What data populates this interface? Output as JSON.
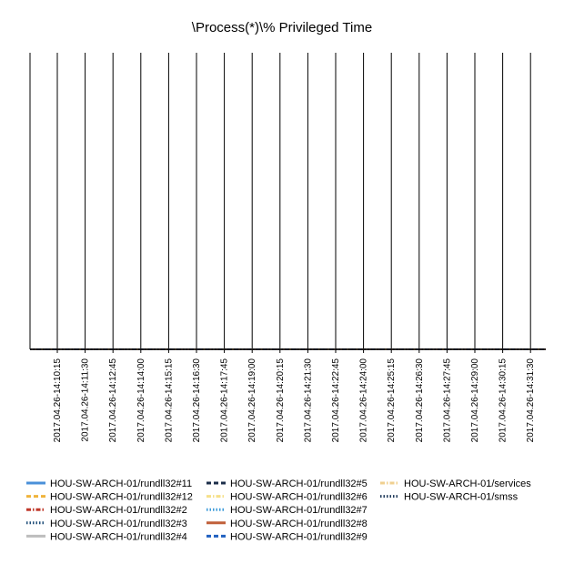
{
  "chart_data": {
    "type": "line",
    "title": "\\Process(*)\\% Privileged Time",
    "xlabel": "",
    "ylabel": "",
    "grid": "vertical",
    "legend_position": "bottom",
    "categories": [
      "2017.04.26-14:10:15",
      "2017.04.26-14:11:30",
      "2017.04.26-14:12:45",
      "2017.04.26-14:14:00",
      "2017.04.26-14:15:15",
      "2017.04.26-14:16:30",
      "2017.04.26-14:17:45",
      "2017.04.26-14:19:00",
      "2017.04.26-14:20:15",
      "2017.04.26-14:21:30",
      "2017.04.26-14:22:45",
      "2017.04.26-14:24:00",
      "2017.04.26-14:25:15",
      "2017.04.26-14:26:30",
      "2017.04.26-14:27:45",
      "2017.04.26-14:29:00",
      "2017.04.26-14:30:15",
      "2017.04.26-14:31:30"
    ],
    "series": [
      {
        "name": "HOU-SW-ARCH-01/rundll32#11",
        "color": "#4a90d9",
        "dash": "solid",
        "values": [
          0,
          0,
          0,
          0,
          0,
          0,
          0,
          0,
          0,
          0,
          0,
          0,
          0,
          0,
          0,
          0,
          0,
          0
        ]
      },
      {
        "name": "HOU-SW-ARCH-01/rundll32#12",
        "color": "#f0b43c",
        "dash": "dash",
        "values": [
          0,
          0,
          0,
          0,
          0,
          0,
          0,
          0,
          0,
          0,
          0,
          0,
          0,
          0,
          0,
          0,
          0,
          0
        ]
      },
      {
        "name": "HOU-SW-ARCH-01/rundll32#2",
        "color": "#c0392b",
        "dash": "dashdot",
        "values": [
          0,
          0,
          0,
          0,
          0,
          0,
          0,
          0,
          0,
          0,
          0,
          0,
          0,
          0,
          0,
          0,
          0,
          0
        ]
      },
      {
        "name": "HOU-SW-ARCH-01/rundll32#3",
        "color": "#1f4e79",
        "dash": "dot",
        "values": [
          0,
          0,
          0,
          0,
          0,
          0,
          0,
          0,
          0,
          0,
          0,
          0,
          0,
          0,
          0,
          0,
          0,
          0
        ]
      },
      {
        "name": "HOU-SW-ARCH-01/rundll32#4",
        "color": "#bdbdbd",
        "dash": "solid",
        "values": [
          0,
          0,
          0,
          0,
          0,
          0,
          0,
          0,
          0,
          0,
          0,
          0,
          0,
          0,
          0,
          0,
          0,
          0
        ]
      },
      {
        "name": "HOU-SW-ARCH-01/rundll32#5",
        "color": "#1c2e4a",
        "dash": "dash",
        "values": [
          0,
          0,
          0,
          0,
          0,
          0,
          0,
          0,
          0,
          0,
          0,
          0,
          0,
          0,
          0,
          0,
          0,
          0
        ]
      },
      {
        "name": "HOU-SW-ARCH-01/rundll32#6",
        "color": "#f6e08a",
        "dash": "dashdot",
        "values": [
          0,
          0,
          0,
          0,
          0,
          0,
          0,
          0,
          0,
          0,
          0,
          0,
          0,
          0,
          0,
          0,
          0,
          0
        ]
      },
      {
        "name": "HOU-SW-ARCH-01/rundll32#7",
        "color": "#3a9ad9",
        "dash": "dot",
        "values": [
          0,
          0,
          0,
          0,
          0,
          0,
          0,
          0,
          0,
          0,
          0,
          0,
          0,
          0,
          0,
          0,
          0,
          0
        ]
      },
      {
        "name": "HOU-SW-ARCH-01/rundll32#8",
        "color": "#c0603a",
        "dash": "solid",
        "values": [
          0,
          0,
          0,
          0,
          0,
          0,
          0,
          0,
          0,
          0,
          0,
          0,
          0,
          0,
          0,
          0,
          0,
          0
        ]
      },
      {
        "name": "HOU-SW-ARCH-01/rundll32#9",
        "color": "#2060c0",
        "dash": "dash",
        "values": [
          0,
          0,
          0,
          0,
          0,
          0,
          0,
          0,
          0,
          0,
          0,
          0,
          0,
          0,
          0,
          0,
          0,
          0
        ]
      },
      {
        "name": "HOU-SW-ARCH-01/services",
        "color": "#f0d090",
        "dash": "dashdot",
        "values": [
          0,
          0,
          0,
          0,
          0,
          0,
          0,
          0,
          0,
          0,
          0,
          0,
          0,
          0,
          0,
          0,
          0,
          0
        ]
      },
      {
        "name": "HOU-SW-ARCH-01/smss",
        "color": "#1f3a5a",
        "dash": "dot",
        "values": [
          0,
          0,
          0,
          0,
          0,
          0,
          0,
          0,
          0,
          0,
          0,
          0,
          0,
          0,
          0,
          0,
          0,
          0
        ]
      }
    ]
  }
}
